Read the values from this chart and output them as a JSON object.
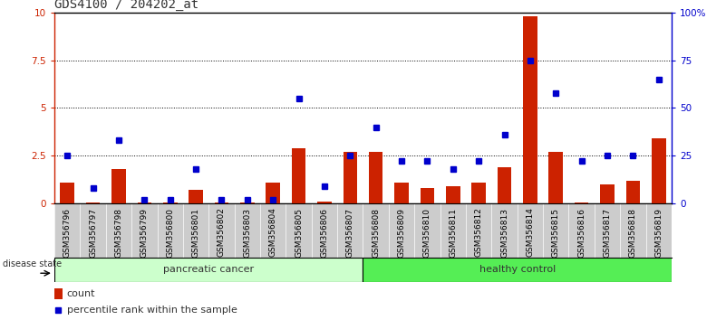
{
  "title": "GDS4100 / 204202_at",
  "samples": [
    "GSM356796",
    "GSM356797",
    "GSM356798",
    "GSM356799",
    "GSM356800",
    "GSM356801",
    "GSM356802",
    "GSM356803",
    "GSM356804",
    "GSM356805",
    "GSM356806",
    "GSM356807",
    "GSM356808",
    "GSM356809",
    "GSM356810",
    "GSM356811",
    "GSM356812",
    "GSM356813",
    "GSM356814",
    "GSM356815",
    "GSM356816",
    "GSM356817",
    "GSM356818",
    "GSM356819"
  ],
  "count": [
    1.1,
    0.05,
    1.8,
    0.05,
    0.05,
    0.7,
    0.05,
    0.05,
    1.1,
    2.9,
    0.1,
    2.7,
    2.7,
    1.1,
    0.8,
    0.9,
    1.1,
    1.9,
    9.8,
    2.7,
    0.05,
    1.0,
    1.2,
    3.4
  ],
  "percentile": [
    25,
    8,
    33,
    2,
    2,
    18,
    2,
    2,
    2,
    55,
    9,
    25,
    40,
    22,
    22,
    18,
    22,
    36,
    75,
    58,
    22,
    25,
    25,
    65
  ],
  "group_labels": [
    "pancreatic cancer",
    "healthy control"
  ],
  "group_split": 12,
  "group_color_left": "#ccffcc",
  "group_color_right": "#55ee55",
  "group_border_color": "#000000",
  "disease_state_label": "disease state",
  "legend_count_label": "count",
  "legend_pct_label": "percentile rank within the sample",
  "ylim_left": [
    0,
    10
  ],
  "ylim_right": [
    0,
    100
  ],
  "yticks_left": [
    0,
    2.5,
    5,
    7.5,
    10
  ],
  "ytick_labels_left": [
    "0",
    "2.5",
    "5",
    "7.5",
    "10"
  ],
  "yticks_right": [
    0,
    25,
    50,
    75,
    100
  ],
  "ytick_labels_right": [
    "0",
    "25",
    "50",
    "75",
    "100%"
  ],
  "bar_color": "#cc2200",
  "dot_color": "#0000cc",
  "plot_bg_color": "#ffffff",
  "xtick_bg_color": "#cccccc",
  "title_color": "#333333",
  "grid_color": "#000000",
  "title_fontsize": 10,
  "tick_fontsize": 7.5,
  "xtick_fontsize": 6.5,
  "label_fontsize": 8,
  "bar_width": 0.55,
  "dot_size": 5
}
